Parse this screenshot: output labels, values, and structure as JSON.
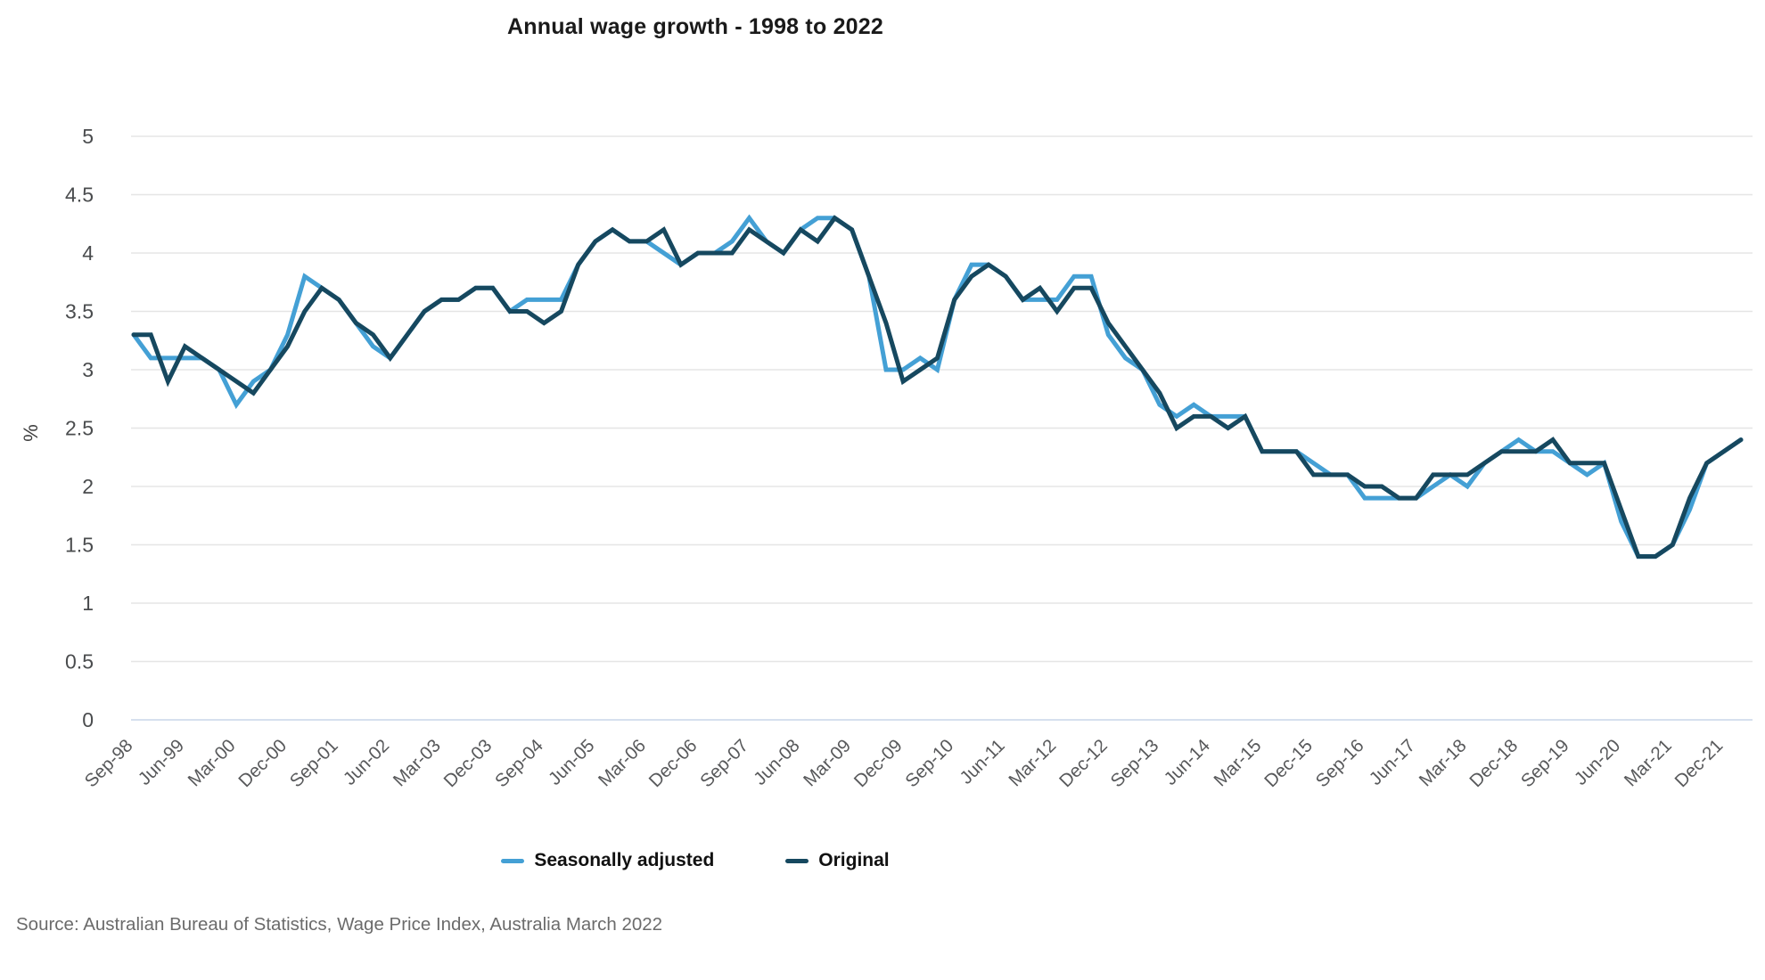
{
  "source": "Source: Australian Bureau of Statistics, Wage Price Index, Australia March 2022",
  "chart_data": {
    "type": "line",
    "title": "Annual wage growth - 1998 to 2022",
    "xlabel": "",
    "ylabel": "%",
    "ylim": [
      0,
      5
    ],
    "yticks": [
      0,
      0.5,
      1,
      1.5,
      2,
      2.5,
      3,
      3.5,
      4,
      4.5,
      5
    ],
    "label_every": 3,
    "grid": "horizontal",
    "gridline_color": "#e5e5e5",
    "zero_line_color": "#c9d6e8",
    "axis_text_color": "#58595b",
    "legend_position": "bottom-center",
    "categories": [
      "Sep-98",
      "Dec-98",
      "Mar-99",
      "Jun-99",
      "Sep-99",
      "Dec-99",
      "Mar-00",
      "Jun-00",
      "Sep-00",
      "Dec-00",
      "Mar-01",
      "Jun-01",
      "Sep-01",
      "Dec-01",
      "Mar-02",
      "Jun-02",
      "Sep-02",
      "Dec-02",
      "Mar-03",
      "Jun-03",
      "Sep-03",
      "Dec-03",
      "Mar-04",
      "Jun-04",
      "Sep-04",
      "Dec-04",
      "Mar-05",
      "Jun-05",
      "Sep-05",
      "Dec-05",
      "Mar-06",
      "Jun-06",
      "Sep-06",
      "Dec-06",
      "Mar-07",
      "Jun-07",
      "Sep-07",
      "Dec-07",
      "Mar-08",
      "Jun-08",
      "Sep-08",
      "Dec-08",
      "Mar-09",
      "Jun-09",
      "Sep-09",
      "Dec-09",
      "Mar-10",
      "Jun-10",
      "Sep-10",
      "Dec-10",
      "Mar-11",
      "Jun-11",
      "Sep-11",
      "Dec-11",
      "Mar-12",
      "Jun-12",
      "Sep-12",
      "Dec-12",
      "Mar-13",
      "Jun-13",
      "Sep-13",
      "Dec-13",
      "Mar-14",
      "Jun-14",
      "Sep-14",
      "Dec-14",
      "Mar-15",
      "Jun-15",
      "Sep-15",
      "Dec-15",
      "Mar-16",
      "Jun-16",
      "Sep-16",
      "Dec-16",
      "Mar-17",
      "Jun-17",
      "Sep-17",
      "Dec-17",
      "Mar-18",
      "Jun-18",
      "Sep-18",
      "Dec-18",
      "Mar-19",
      "Jun-19",
      "Sep-19",
      "Dec-19",
      "Mar-20",
      "Jun-20",
      "Sep-20",
      "Dec-20",
      "Mar-21",
      "Jun-21",
      "Sep-21",
      "Dec-21",
      "Mar-22"
    ],
    "series": [
      {
        "name": "Seasonally adjusted",
        "color": "#44a0d5",
        "values": [
          3.3,
          3.1,
          3.1,
          3.1,
          3.1,
          3.0,
          2.7,
          2.9,
          3.0,
          3.3,
          3.8,
          3.7,
          3.6,
          3.4,
          3.2,
          3.1,
          3.3,
          3.5,
          3.6,
          3.6,
          3.7,
          3.7,
          3.5,
          3.6,
          3.6,
          3.6,
          3.9,
          4.1,
          4.2,
          4.1,
          4.1,
          4.0,
          3.9,
          4.0,
          4.0,
          4.1,
          4.3,
          4.1,
          4.0,
          4.2,
          4.3,
          4.3,
          4.2,
          3.8,
          3.0,
          3.0,
          3.1,
          3.0,
          3.6,
          3.9,
          3.9,
          3.8,
          3.6,
          3.6,
          3.6,
          3.8,
          3.8,
          3.3,
          3.1,
          3.0,
          2.7,
          2.6,
          2.7,
          2.6,
          2.6,
          2.6,
          2.3,
          2.3,
          2.3,
          2.2,
          2.1,
          2.1,
          1.9,
          1.9,
          1.9,
          1.9,
          2.0,
          2.1,
          2.0,
          2.2,
          2.3,
          2.4,
          2.3,
          2.3,
          2.2,
          2.1,
          2.2,
          1.7,
          1.4,
          1.4,
          1.5,
          1.8,
          2.2,
          2.3,
          2.4
        ]
      },
      {
        "name": "Original",
        "color": "#16485f",
        "values": [
          3.3,
          3.3,
          2.9,
          3.2,
          3.1,
          3.0,
          2.9,
          2.8,
          3.0,
          3.2,
          3.5,
          3.7,
          3.6,
          3.4,
          3.3,
          3.1,
          3.3,
          3.5,
          3.6,
          3.6,
          3.7,
          3.7,
          3.5,
          3.5,
          3.4,
          3.5,
          3.9,
          4.1,
          4.2,
          4.1,
          4.1,
          4.2,
          3.9,
          4.0,
          4.0,
          4.0,
          4.2,
          4.1,
          4.0,
          4.2,
          4.1,
          4.3,
          4.2,
          3.8,
          3.4,
          2.9,
          3.0,
          3.1,
          3.6,
          3.8,
          3.9,
          3.8,
          3.6,
          3.7,
          3.5,
          3.7,
          3.7,
          3.4,
          3.2,
          3.0,
          2.8,
          2.5,
          2.6,
          2.6,
          2.5,
          2.6,
          2.3,
          2.3,
          2.3,
          2.1,
          2.1,
          2.1,
          2.0,
          2.0,
          1.9,
          1.9,
          2.1,
          2.1,
          2.1,
          2.2,
          2.3,
          2.3,
          2.3,
          2.4,
          2.2,
          2.2,
          2.2,
          1.8,
          1.4,
          1.4,
          1.5,
          1.9,
          2.2,
          2.3,
          2.4
        ]
      }
    ]
  }
}
